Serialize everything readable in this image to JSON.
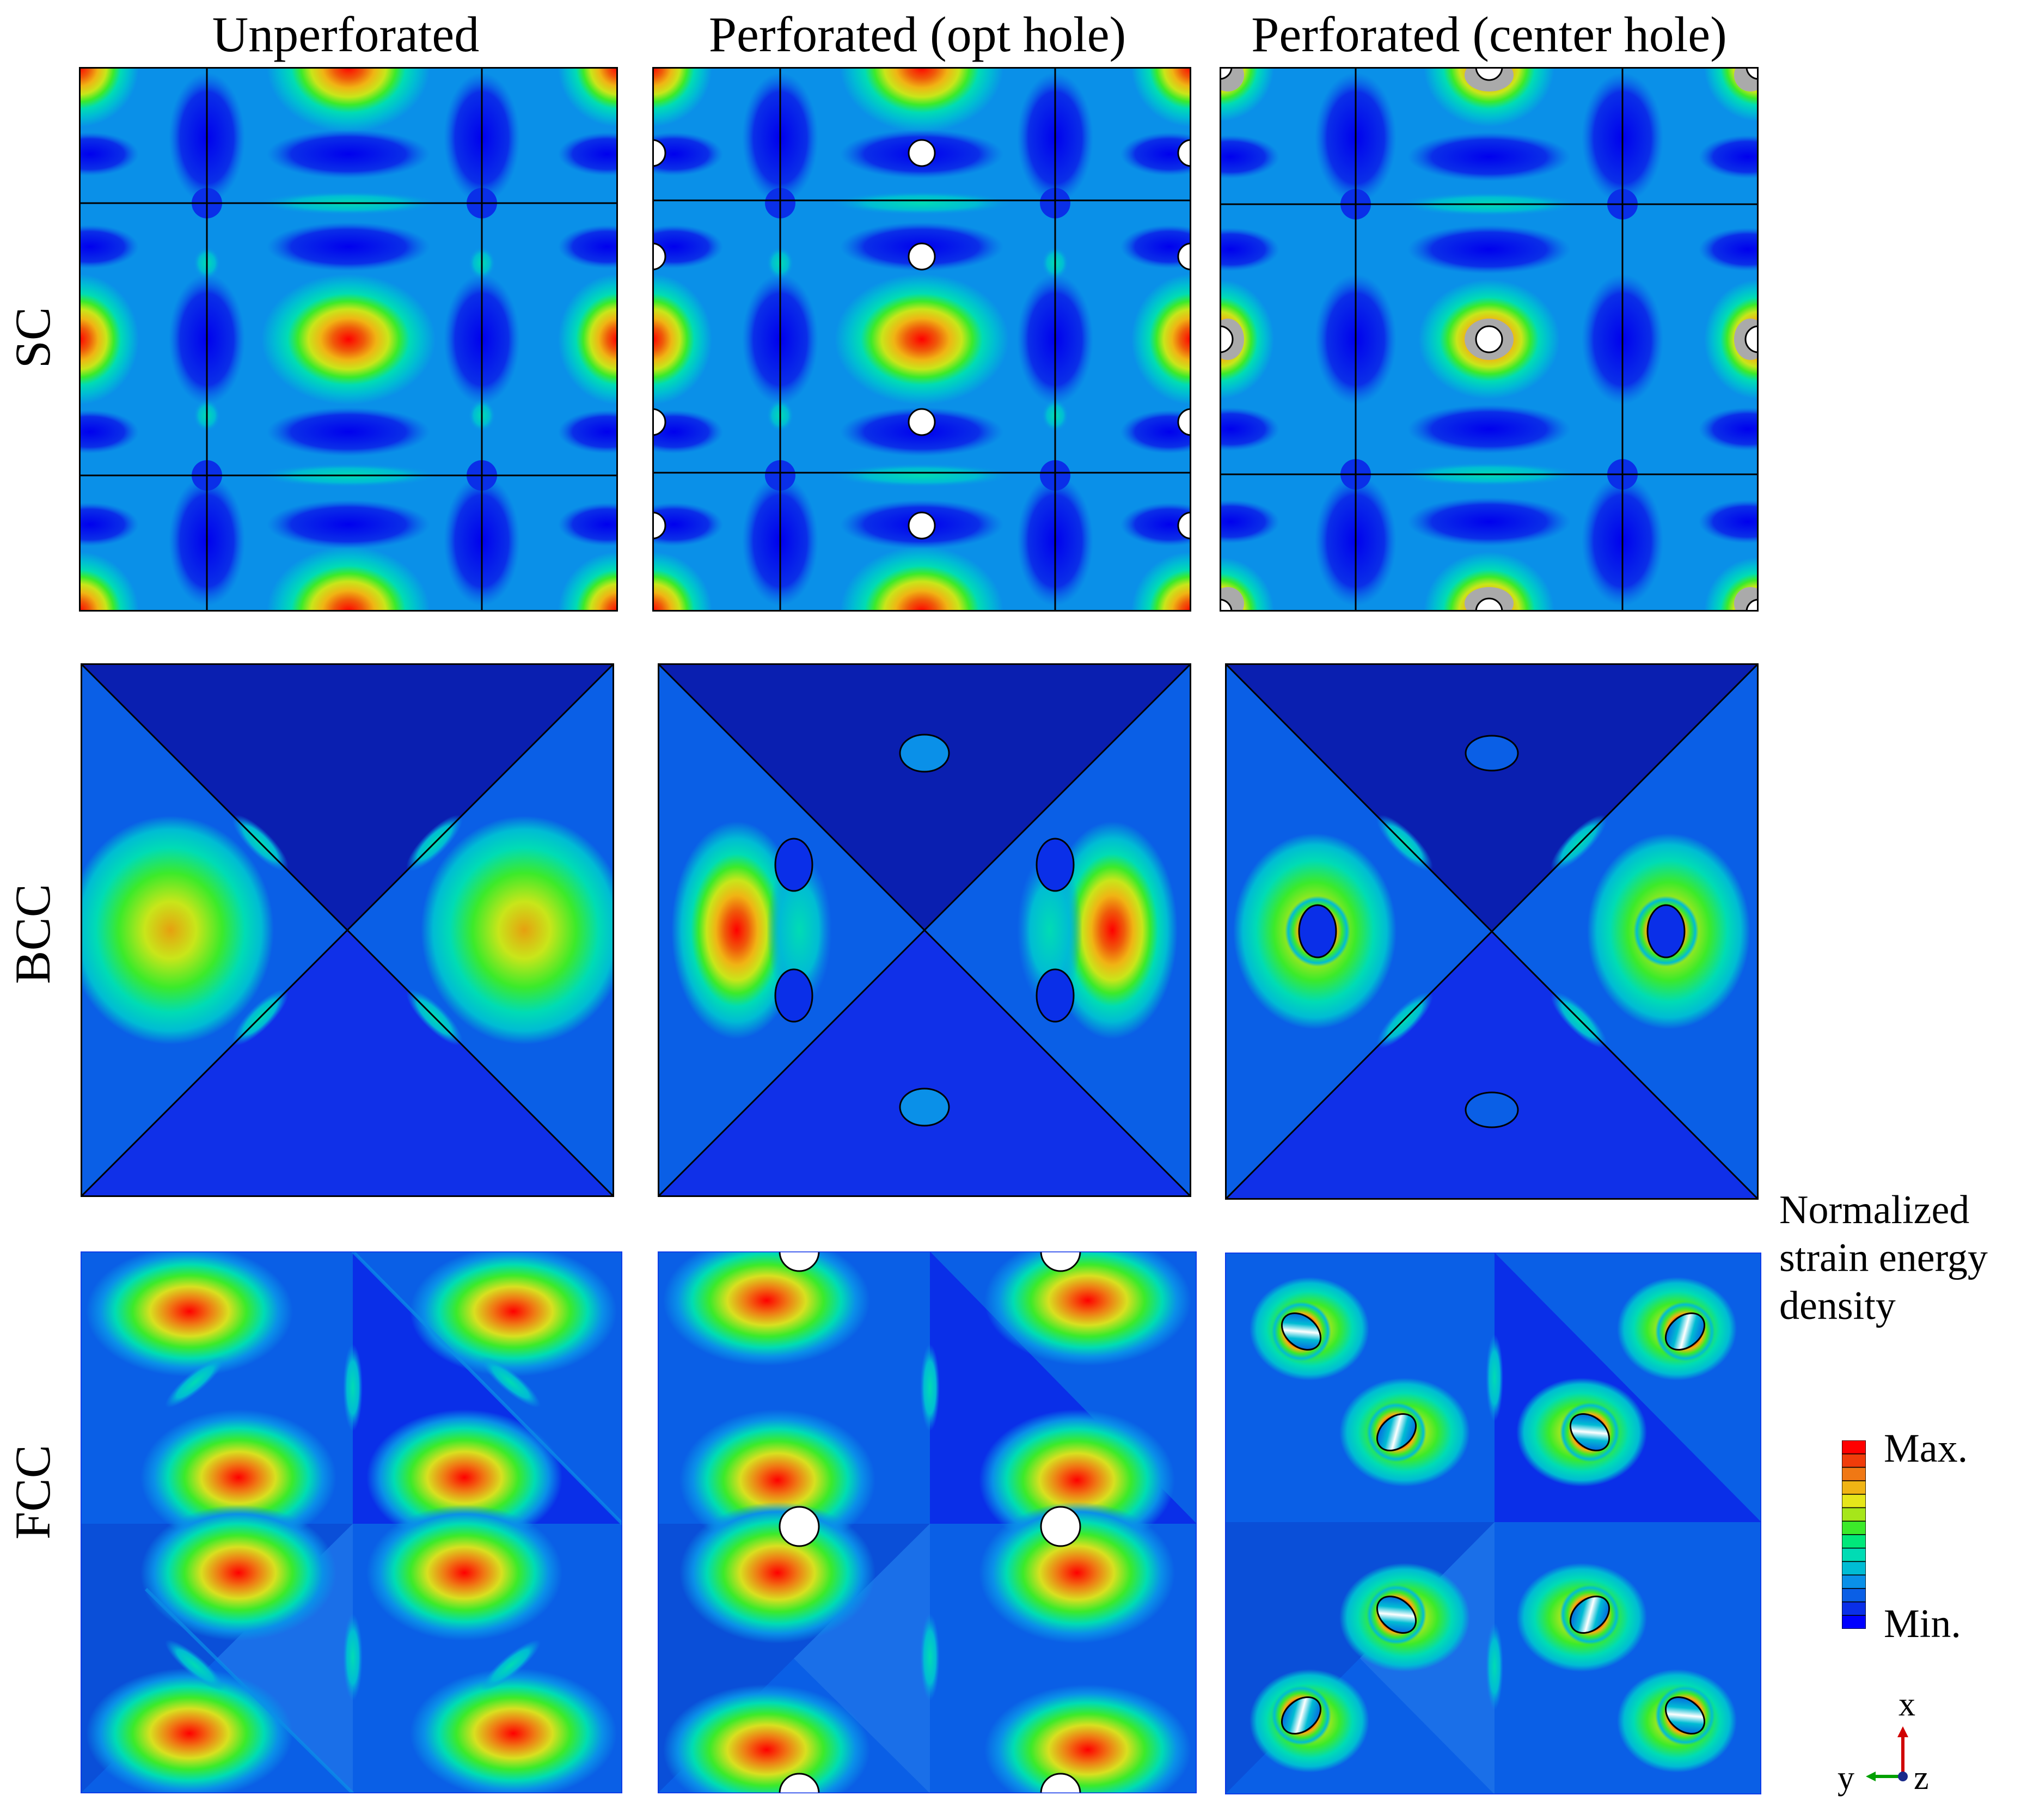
{
  "columns": [
    "Unperforated",
    "Perforated (opt hole)",
    "Perforated (center hole)"
  ],
  "rows": [
    "SC",
    "BCC",
    "FCC"
  ],
  "legend": {
    "title_lines": [
      "Normalized",
      "strain energy",
      "density"
    ],
    "max_label": "Max.",
    "min_label": "Min.",
    "colors": [
      "#0000ff",
      "#0a2fe8",
      "#0a5fe6",
      "#0a90e8",
      "#00bcd4",
      "#00dcb4",
      "#00e87a",
      "#3cea2a",
      "#a6e61a",
      "#e6e61a",
      "#f0b414",
      "#f07814",
      "#f03c0a",
      "#ff0000"
    ]
  },
  "axes": {
    "x": "x",
    "y": "y",
    "z": "z"
  }
}
